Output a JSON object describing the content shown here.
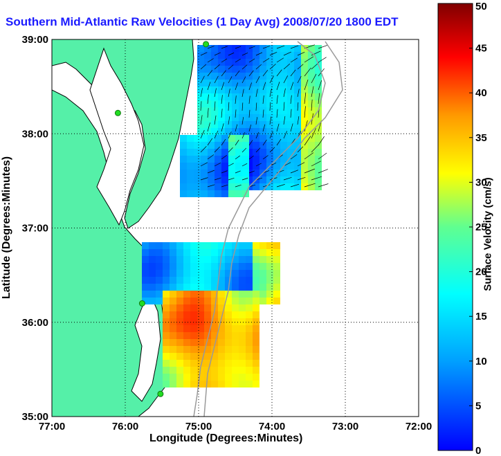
{
  "title": "Southern Mid-Atlantic Raw Velocities (1 Day Avg) 2008/07/20 1800 EDT",
  "x_axis": {
    "label": "Longitude (Degrees:Minutes)",
    "ticks": [
      "77:00",
      "76:00",
      "75:00",
      "74:00",
      "73:00",
      "72:00"
    ]
  },
  "y_axis": {
    "label": "Latitude (Degrees:Minutes)",
    "ticks": [
      "39:00",
      "38:00",
      "37:00",
      "36:00",
      "35:00"
    ]
  },
  "colorbar": {
    "label": "Surface Velocity (cm/s)",
    "ticks": [
      "0",
      "5",
      "10",
      "15",
      "20",
      "25",
      "30",
      "35",
      "40",
      "45",
      "50"
    ],
    "min": 0,
    "max": 50
  },
  "colors": {
    "land": "#55f0a8",
    "title": "#1a1aff",
    "station": "#22dd22"
  },
  "lon_range": [
    -77,
    -72
  ],
  "lat_range": [
    35,
    39
  ],
  "stations": [
    {
      "lon": -74.9,
      "lat": 38.95
    },
    {
      "lon": -76.1,
      "lat": 38.22
    },
    {
      "lon": -75.77,
      "lat": 36.2
    },
    {
      "lon": -75.52,
      "lat": 35.24
    }
  ]
}
